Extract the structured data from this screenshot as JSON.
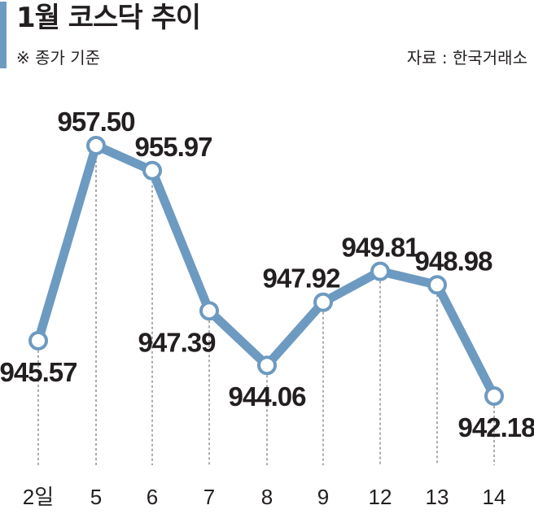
{
  "header": {
    "title": "1월 코스닥 추이",
    "note": "※ 종가 기준",
    "source": "자료 : 한국거래소"
  },
  "colors": {
    "line": "#6d9ac1",
    "accent_bar": "#6d9ac1",
    "text": "#231f20"
  },
  "chart_data": {
    "type": "line",
    "title": "1월 코스닥 추이",
    "subtitle": "※ 종가 기준",
    "xlabel": "",
    "ylabel": "",
    "grid": false,
    "categories": [
      "2일",
      "5",
      "6",
      "7",
      "8",
      "9",
      "12",
      "13",
      "14"
    ],
    "series": [
      {
        "values": [
          945.57,
          957.5,
          955.97,
          947.39,
          944.06,
          947.92,
          949.81,
          948.98,
          942.18
        ]
      }
    ],
    "data_labels": [
      "945.57",
      "957.50",
      "955.97",
      "947.39",
      "944.06",
      "947.92",
      "949.81",
      "948.98",
      "942.18"
    ]
  }
}
